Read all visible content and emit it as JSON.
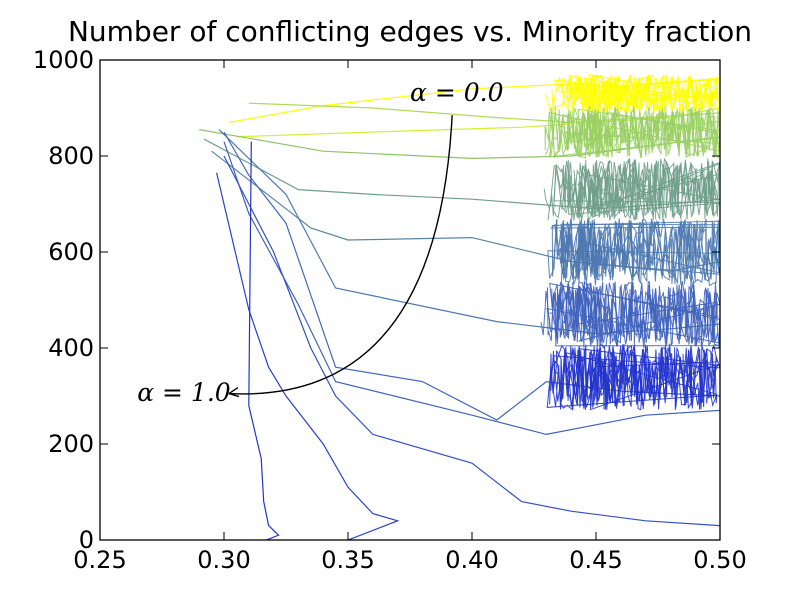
{
  "chart_data": {
    "type": "line",
    "title": "Number of conflicting edges vs. Minority fraction",
    "xlabel": "",
    "ylabel": "",
    "xlim": [
      0.25,
      0.5
    ],
    "ylim": [
      0,
      1000
    ],
    "x_ticks": [
      0.25,
      0.3,
      0.35,
      0.4,
      0.45,
      0.5
    ],
    "x_tick_labels": [
      "0.25",
      "0.30",
      "0.35",
      "0.40",
      "0.45",
      "0.50"
    ],
    "y_ticks": [
      0,
      200,
      400,
      600,
      800,
      1000
    ],
    "y_tick_labels": [
      "0",
      "200",
      "400",
      "600",
      "800",
      "1000"
    ],
    "grid": false,
    "legend": "none",
    "colormap": [
      "#2233cc",
      "#3f62bd",
      "#4c78b0",
      "#6f9f8a",
      "#99cf62",
      "#ffff00"
    ],
    "annotations": [
      {
        "text": "α = 0.0",
        "x": 0.375,
        "y": 915
      },
      {
        "text": "α = 1.0",
        "x": 0.265,
        "y": 290
      }
    ],
    "arrow": {
      "from": [
        0.392,
        885
      ],
      "to": [
        0.302,
        305
      ]
    },
    "series": [
      {
        "color": "#ffff00",
        "x": [
          0.302,
          0.34,
          0.4,
          0.44,
          0.46,
          0.5
        ],
        "y": [
          870,
          905,
          940,
          950,
          945,
          960
        ]
      },
      {
        "color": "#d6ee30",
        "x": [
          0.305,
          0.36,
          0.42,
          0.45,
          0.48,
          0.5
        ],
        "y": [
          840,
          850,
          860,
          870,
          880,
          900
        ]
      },
      {
        "color": "#aedb55",
        "x": [
          0.31,
          0.36,
          0.41,
          0.44,
          0.47,
          0.5
        ],
        "y": [
          910,
          900,
          880,
          870,
          880,
          890
        ]
      },
      {
        "color": "#8fc565",
        "x": [
          0.29,
          0.34,
          0.4,
          0.44,
          0.47,
          0.5
        ],
        "y": [
          855,
          810,
          795,
          800,
          820,
          840
        ]
      },
      {
        "color": "#6f9f8a",
        "x": [
          0.292,
          0.33,
          0.36,
          0.4,
          0.45,
          0.48,
          0.5
        ],
        "y": [
          835,
          730,
          720,
          710,
          690,
          700,
          710
        ]
      },
      {
        "color": "#5a86a4",
        "x": [
          0.295,
          0.335,
          0.35,
          0.4,
          0.44,
          0.48,
          0.5
        ],
        "y": [
          810,
          650,
          625,
          630,
          580,
          560,
          580
        ]
      },
      {
        "color": "#4c78b0",
        "x": [
          0.298,
          0.325,
          0.345,
          0.41,
          0.45,
          0.48,
          0.5
        ],
        "y": [
          855,
          720,
          525,
          455,
          430,
          440,
          450
        ]
      },
      {
        "color": "#4468c0",
        "x": [
          0.3,
          0.31,
          0.325,
          0.345,
          0.38,
          0.41,
          0.43,
          0.46,
          0.5
        ],
        "y": [
          850,
          760,
          660,
          360,
          330,
          250,
          330,
          310,
          300
        ]
      },
      {
        "color": "#3f62bd",
        "x": [
          0.3,
          0.31,
          0.33,
          0.345,
          0.4,
          0.43,
          0.47,
          0.5
        ],
        "y": [
          830,
          680,
          490,
          330,
          260,
          220,
          260,
          270
        ]
      },
      {
        "color": "#3350c4",
        "x": [
          0.3,
          0.32,
          0.335,
          0.345,
          0.36,
          0.4,
          0.42,
          0.44,
          0.47,
          0.5
        ],
        "y": [
          800,
          600,
          400,
          300,
          220,
          160,
          80,
          60,
          40,
          30
        ]
      },
      {
        "color": "#2a40c8",
        "x": [
          0.297,
          0.31,
          0.318,
          0.325,
          0.34,
          0.35,
          0.36,
          0.37,
          0.35
        ],
        "y": [
          765,
          480,
          360,
          300,
          200,
          110,
          55,
          40,
          0
        ]
      },
      {
        "color": "#2233cc",
        "x": [
          0.311,
          0.31,
          0.315,
          0.316,
          0.318,
          0.322,
          0.317
        ],
        "y": [
          830,
          280,
          170,
          80,
          30,
          10,
          0
        ]
      }
    ]
  }
}
